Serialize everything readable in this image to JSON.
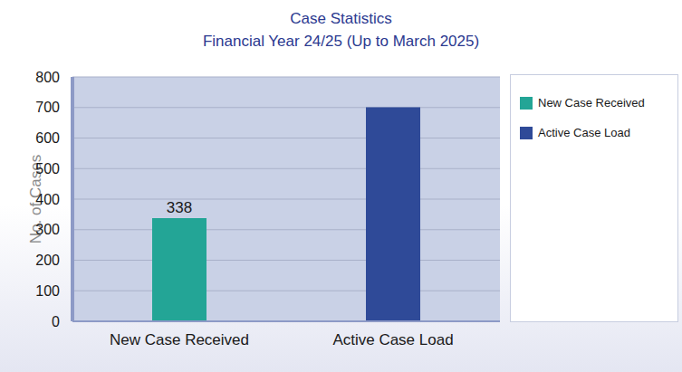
{
  "chart_data": {
    "type": "bar",
    "title": "Case Statistics",
    "subtitle": "Financial Year 24/25 (Up to March 2025)",
    "y_label": "No. of Cases",
    "categories": [
      "New Case Received",
      "Active Case Load"
    ],
    "series": [
      {
        "name": "New Case Received",
        "color": "#23a596",
        "values": [
          338,
          null
        ]
      },
      {
        "name": "Active Case Load",
        "color": "#2f4a98",
        "values": [
          null,
          701
        ]
      }
    ],
    "ylim": [
      0,
      800
    ],
    "yticks": [
      0,
      100,
      200,
      300,
      400,
      500,
      600,
      700,
      800
    ],
    "grid": true,
    "stacked": true,
    "data_labels": true,
    "legend": "right"
  }
}
